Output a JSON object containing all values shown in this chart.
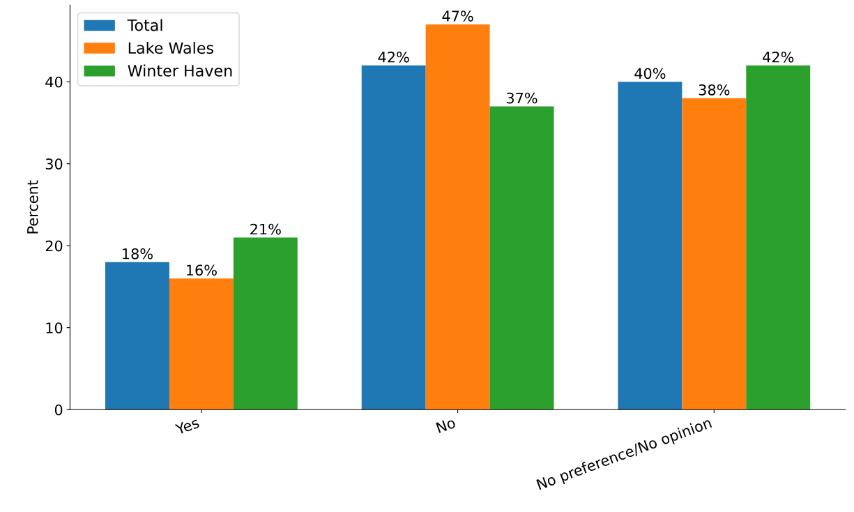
{
  "chart_data": {
    "type": "bar",
    "ylabel": "Percent",
    "categories": [
      "Yes",
      "No",
      "No preference/No opinion"
    ],
    "series": [
      {
        "name": "Total",
        "color": "#1f77b4",
        "values": [
          18,
          42,
          40
        ],
        "value_labels": [
          "18%",
          "42%",
          "40%"
        ]
      },
      {
        "name": "Lake Wales",
        "color": "#ff7f0e",
        "values": [
          16,
          47,
          38
        ],
        "value_labels": [
          "16%",
          "47%",
          "38%"
        ]
      },
      {
        "name": "Winter Haven",
        "color": "#2ca02c",
        "values": [
          21,
          37,
          42
        ],
        "value_labels": [
          "21%",
          "37%",
          "42%"
        ]
      }
    ],
    "ylim": [
      0,
      49.35
    ],
    "yticks": [
      0,
      10,
      20,
      30,
      40
    ],
    "grid": false,
    "legend": "top left"
  }
}
